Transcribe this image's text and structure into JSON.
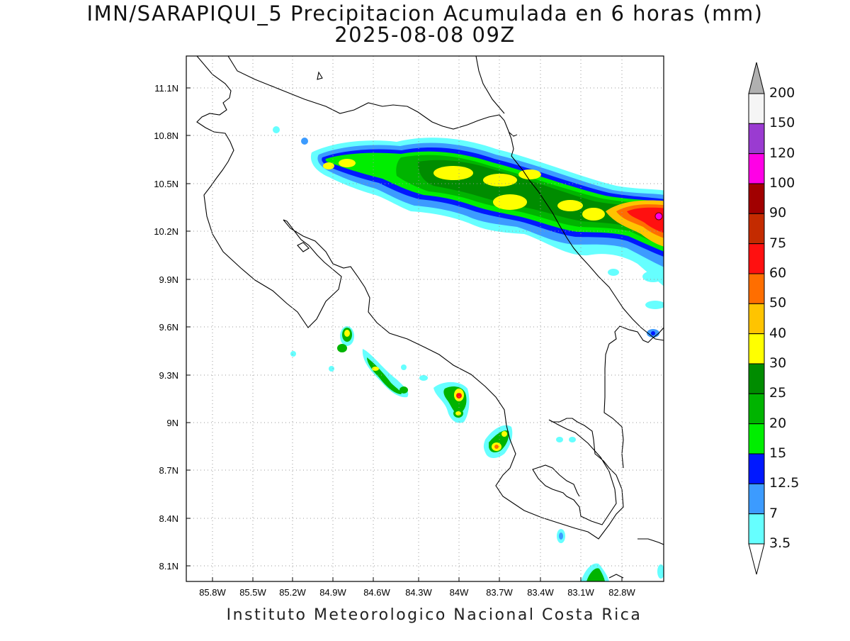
{
  "title": {
    "line1": "IMN/SARAPIQUI_5 Precipitacion Acumulada en 6 horas (mm)",
    "line2": "2025-08-08 09Z"
  },
  "footer": "Instituto Meteorologico Nacional Costa Rica",
  "map": {
    "lon_labels": [
      "85.8W",
      "85.5W",
      "85.2W",
      "84.9W",
      "84.6W",
      "84.3W",
      "84W",
      "83.7W",
      "83.4W",
      "83.1W",
      "82.8W"
    ],
    "lat_labels": [
      "11.1N",
      "10.8N",
      "10.5N",
      "10.2N",
      "9.9N",
      "9.6N",
      "9.3N",
      "9N",
      "8.7N",
      "8.4N",
      "8.1N"
    ]
  },
  "colorbar": {
    "labels": [
      "200",
      "150",
      "120",
      "100",
      "90",
      "75",
      "60",
      "50",
      "40",
      "30",
      "25",
      "20",
      "15",
      "12.5",
      "7",
      "3.5"
    ],
    "colors": [
      "#b0b0b0",
      "#f5f5f5",
      "#9a3bd1",
      "#ff00e6",
      "#a10000",
      "#c42b00",
      "#ff1010",
      "#ff6e00",
      "#ffc400",
      "#ffff00",
      "#008c00",
      "#00b400",
      "#00ee00",
      "#0018ff",
      "#3c9bff",
      "#66ffff",
      "#ffffff"
    ]
  }
}
